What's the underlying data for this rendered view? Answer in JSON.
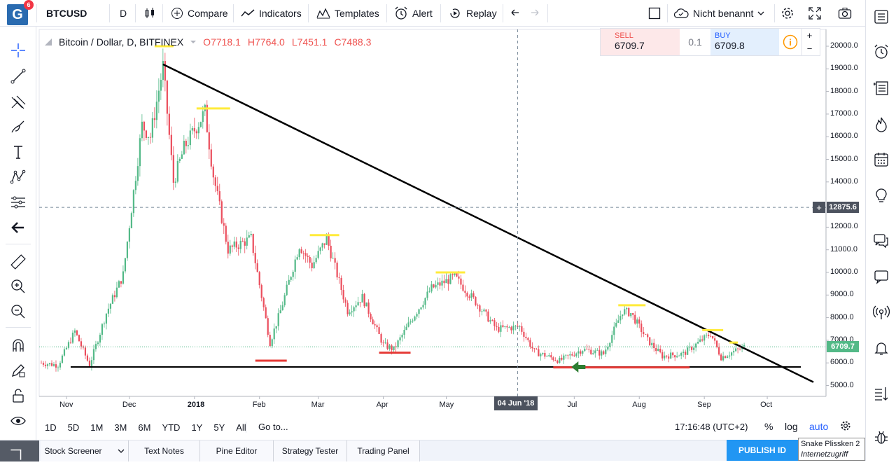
{
  "topbar": {
    "logo_letter": "G",
    "logo_badge": "6",
    "symbol": "BTCUSD",
    "interval": "D",
    "compare": "Compare",
    "indicators": "Indicators",
    "templates": "Templates",
    "alert": "Alert",
    "replay": "Replay",
    "layout_name": "Nicht benannt"
  },
  "legend": {
    "title": "Bitcoin / Dollar, D, BITFINEX",
    "open": "O7718.1",
    "high": "H7764.0",
    "low": "L7451.1",
    "close": "C7488.3"
  },
  "trade": {
    "sell_label": "SELL",
    "sell_price": "6709.7",
    "spread": "0.1",
    "buy_label": "BUY",
    "buy_price": "6709.8",
    "plus": "+",
    "minus": "−"
  },
  "price_axis": {
    "ticks": [
      "20000.0",
      "19000.0",
      "18000.0",
      "17000.0",
      "16000.0",
      "15000.0",
      "14000.0",
      "12000.0",
      "11000.0",
      "10000.0",
      "9000.0",
      "8000.0",
      "7000.0",
      "6000.0",
      "5000.0"
    ],
    "crosshair_price": "12875.6",
    "last_price": "6709.7"
  },
  "time_axis": {
    "ticks": [
      "Nov",
      "Dec",
      "2018",
      "Feb",
      "Mar",
      "Apr",
      "May",
      "Jul",
      "Aug",
      "Sep",
      "Oct"
    ],
    "crosshair_date": "04 Jun '18"
  },
  "bottom": {
    "ranges": [
      "1D",
      "5D",
      "1M",
      "3M",
      "6M",
      "YTD",
      "1Y",
      "5Y",
      "All"
    ],
    "goto": "Go to...",
    "clock": "17:16:48 (UTC+2)",
    "percent": "%",
    "log": "log",
    "auto": "auto"
  },
  "tabs": [
    "Stock Screener",
    "Text Notes",
    "Pine Editor",
    "Strategy Tester",
    "Trading Panel"
  ],
  "publish": "PUBLISH ID",
  "tooltip": {
    "user": "Snake Plissken",
    "count": "2",
    "status": "Internetzugriff"
  },
  "colors": {
    "up": "#53b987",
    "down": "#eb4d5c",
    "trendline": "#000000",
    "resistance_marker": "#ffeb3b",
    "support_marker": "#e53935",
    "arrow": "#2e7d32"
  },
  "chart_data": {
    "type": "candlestick",
    "symbol": "Bitcoin / Dollar, D, BITFINEX",
    "ylim": [
      4800,
      20500
    ],
    "y_ticks": [
      5000,
      6000,
      7000,
      8000,
      9000,
      10000,
      11000,
      12000,
      13000,
      14000,
      15000,
      16000,
      17000,
      18000,
      19000,
      20000
    ],
    "x_ticks": [
      "Nov",
      "Dec",
      "2018",
      "Feb",
      "Mar",
      "Apr",
      "May",
      "Jun",
      "Jul",
      "Aug",
      "Sep",
      "Oct"
    ],
    "price_path": [
      {
        "date": "2017-10-20",
        "price": 6000
      },
      {
        "date": "2017-10-28",
        "price": 5900
      },
      {
        "date": "2017-11-05",
        "price": 7400
      },
      {
        "date": "2017-11-12",
        "price": 5900
      },
      {
        "date": "2017-11-20",
        "price": 8200
      },
      {
        "date": "2017-11-28",
        "price": 9900
      },
      {
        "date": "2017-12-07",
        "price": 16500
      },
      {
        "date": "2017-12-11",
        "price": 16000
      },
      {
        "date": "2017-12-17",
        "price": 19100
      },
      {
        "date": "2017-12-22",
        "price": 14000
      },
      {
        "date": "2017-12-27",
        "price": 15500
      },
      {
        "date": "2018-01-06",
        "price": 17100
      },
      {
        "date": "2018-01-10",
        "price": 14300
      },
      {
        "date": "2018-01-17",
        "price": 11000
      },
      {
        "date": "2018-01-28",
        "price": 11500
      },
      {
        "date": "2018-02-06",
        "price": 6900
      },
      {
        "date": "2018-02-11",
        "price": 8300
      },
      {
        "date": "2018-02-20",
        "price": 11200
      },
      {
        "date": "2018-02-26",
        "price": 10300
      },
      {
        "date": "2018-03-05",
        "price": 11500
      },
      {
        "date": "2018-03-15",
        "price": 8300
      },
      {
        "date": "2018-03-22",
        "price": 8900
      },
      {
        "date": "2018-04-01",
        "price": 6800
      },
      {
        "date": "2018-04-06",
        "price": 6600
      },
      {
        "date": "2018-04-15",
        "price": 8000
      },
      {
        "date": "2018-04-24",
        "price": 9300
      },
      {
        "date": "2018-05-05",
        "price": 9800
      },
      {
        "date": "2018-05-15",
        "price": 8700
      },
      {
        "date": "2018-05-25",
        "price": 7500
      },
      {
        "date": "2018-06-05",
        "price": 7600
      },
      {
        "date": "2018-06-12",
        "price": 6500
      },
      {
        "date": "2018-06-24",
        "price": 6100
      },
      {
        "date": "2018-07-05",
        "price": 6600
      },
      {
        "date": "2018-07-15",
        "price": 6400
      },
      {
        "date": "2018-07-24",
        "price": 8300
      },
      {
        "date": "2018-07-28",
        "price": 8200
      },
      {
        "date": "2018-08-05",
        "price": 7000
      },
      {
        "date": "2018-08-12",
        "price": 6300
      },
      {
        "date": "2018-08-22",
        "price": 6400
      },
      {
        "date": "2018-09-04",
        "price": 7300
      },
      {
        "date": "2018-09-09",
        "price": 6250
      },
      {
        "date": "2018-09-15",
        "price": 6500
      },
      {
        "date": "2018-09-20",
        "price": 6709.7
      }
    ],
    "drawings": [
      {
        "kind": "trendline",
        "from": {
          "date": "2017-12-17",
          "price": 19200
        },
        "to": {
          "date": "2018-10-23",
          "price": 5150
        }
      },
      {
        "kind": "horizontal",
        "from": {
          "date": "2017-11-03",
          "price": 5820
        },
        "to": {
          "date": "2018-10-17",
          "price": 5820
        }
      },
      {
        "kind": "resistance",
        "date_from": "2017-12-13",
        "date_to": "2017-12-22",
        "price": 20000
      },
      {
        "kind": "resistance",
        "date_from": "2018-01-02",
        "date_to": "2018-01-18",
        "price": 17250
      },
      {
        "kind": "resistance",
        "date_from": "2018-02-25",
        "date_to": "2018-03-11",
        "price": 11650
      },
      {
        "kind": "resistance",
        "date_from": "2018-04-26",
        "date_to": "2018-05-10",
        "price": 10000
      },
      {
        "kind": "resistance",
        "date_from": "2018-07-22",
        "date_to": "2018-08-04",
        "price": 8550
      },
      {
        "kind": "resistance",
        "date_from": "2018-08-31",
        "date_to": "2018-09-10",
        "price": 7450
      },
      {
        "kind": "resistance",
        "date_from": "2018-09-13",
        "date_to": "2018-09-17",
        "price": 6900
      },
      {
        "kind": "support",
        "date_from": "2018-01-30",
        "date_to": "2018-02-14",
        "price": 6100
      },
      {
        "kind": "support",
        "date_from": "2018-03-30",
        "date_to": "2018-04-14",
        "price": 6450
      },
      {
        "kind": "support",
        "date_from": "2018-06-21",
        "date_to": "2018-08-25",
        "price": 5800
      }
    ],
    "crosshair": {
      "date": "2018-06-04",
      "price": 12875.6
    },
    "last_price": 6709.7
  }
}
